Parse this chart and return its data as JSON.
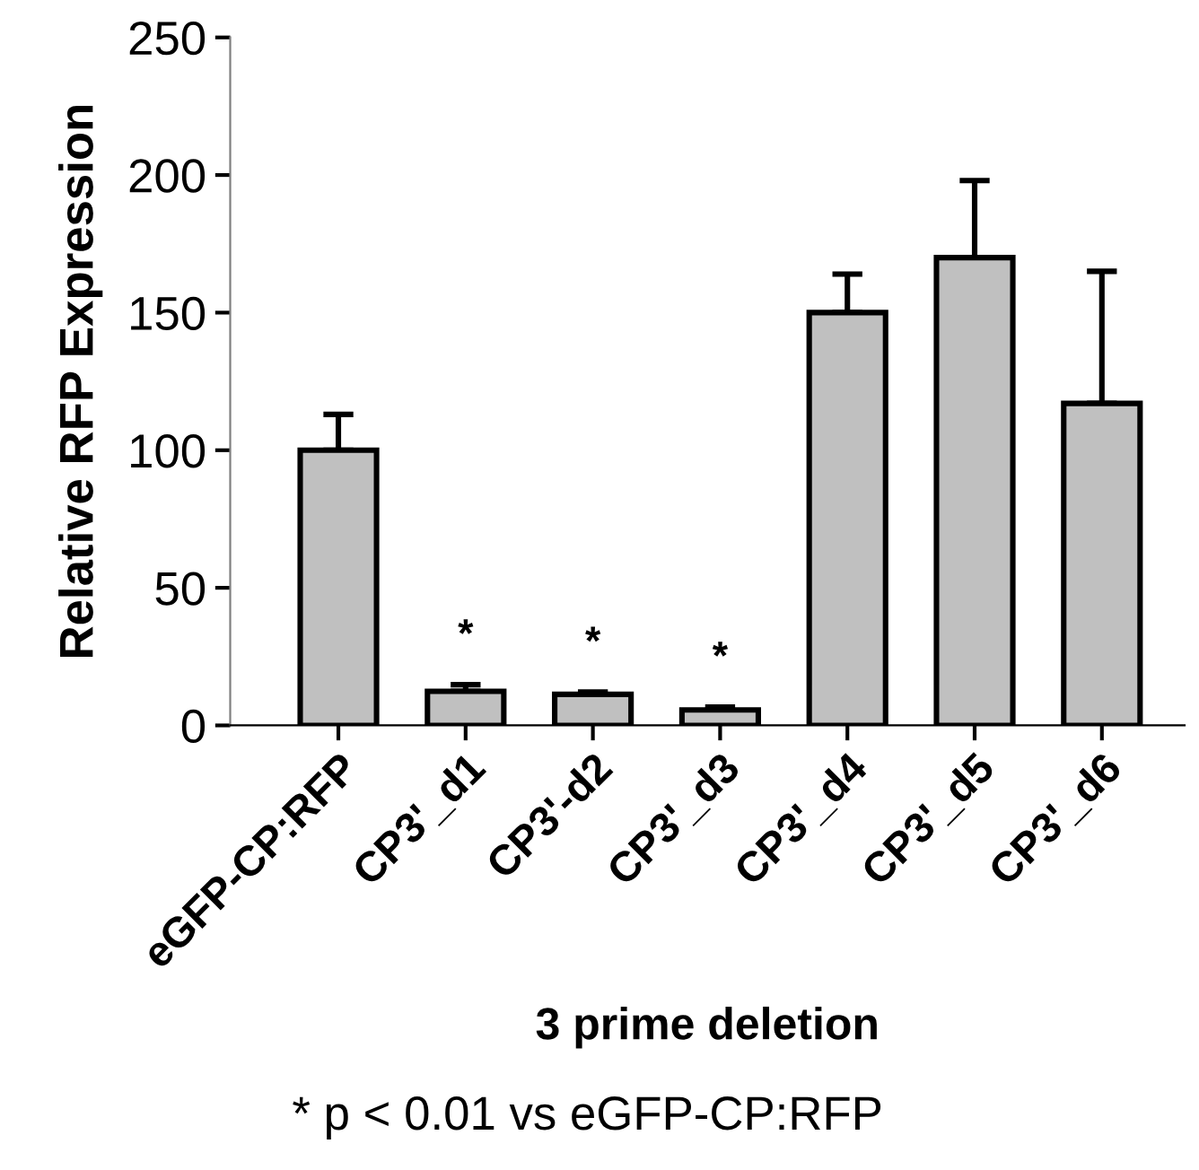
{
  "chart_data": {
    "type": "bar",
    "xlabel": "3 prime deletion",
    "ylabel": "Relative RFP Expression",
    "categories": [
      "eGFP-CP:RFP",
      "CP3'_d1",
      "CP3'-d2",
      "CP3'_d3",
      "CP3'_d4",
      "CP3'_d5",
      "CP3'_d6"
    ],
    "values": [
      100,
      12.4,
      11.3,
      5.6,
      150,
      170,
      117
    ],
    "errors": [
      [
        100,
        113
      ],
      [
        12.4,
        14.8
      ],
      [
        11.3,
        12.1
      ],
      [
        5.6,
        6.7
      ],
      [
        150,
        164
      ],
      [
        170,
        198
      ],
      [
        117,
        165
      ]
    ],
    "value_labels": [
      null,
      "*",
      "*",
      "*",
      null,
      null,
      null
    ],
    "color": "#c0c0c0",
    "ylim": [
      0,
      250
    ],
    "yticks": [
      0,
      50,
      100,
      150,
      200,
      250
    ],
    "grid": false,
    "legend": false,
    "annotations": [
      "* p < 0.01 vs eGFP-CP:RFP"
    ]
  }
}
